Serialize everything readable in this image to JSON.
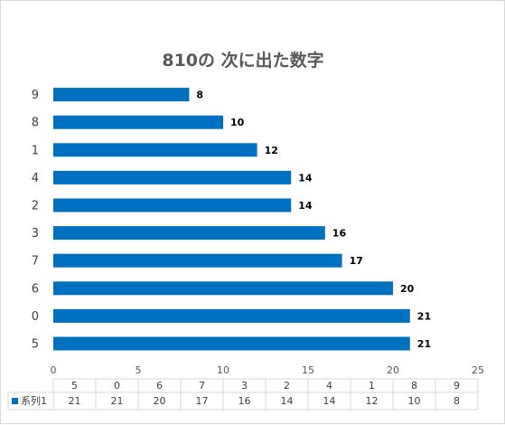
{
  "chart_data": {
    "type": "bar",
    "orientation": "horizontal",
    "title": "810の 次に出た数字",
    "categories": [
      "5",
      "0",
      "6",
      "7",
      "3",
      "2",
      "4",
      "1",
      "8",
      "9"
    ],
    "series": [
      {
        "name": "系列1",
        "values": [
          21,
          21,
          20,
          17,
          16,
          14,
          14,
          12,
          10,
          8
        ],
        "color": "#0070C0"
      }
    ],
    "xlim": [
      0,
      25
    ],
    "x_ticks": [
      0,
      5,
      10,
      15,
      20,
      25
    ],
    "data_labels": true,
    "data_table": true,
    "legend": "data-table"
  }
}
